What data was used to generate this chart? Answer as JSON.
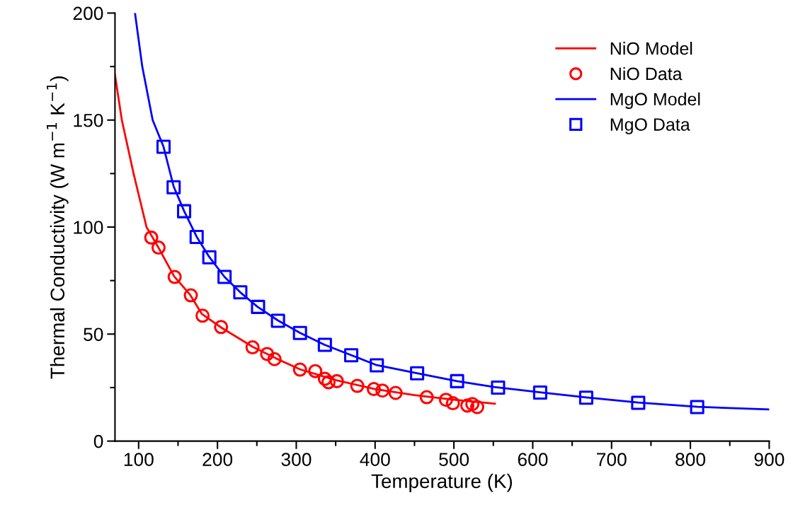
{
  "chart_data": {
    "type": "scatter",
    "xlabel": "Temperature (K)",
    "ylabel": "Thermal Conductivity (W m$^{−1}$ K$^{−1}$)",
    "xlim": [
      70,
      900
    ],
    "ylim": [
      0,
      200
    ],
    "xticks": [
      100,
      {
        "value": 150,
        "label": null
      },
      200,
      {
        "value": 250,
        "label": null
      },
      300,
      {
        "value": 350,
        "label": null
      },
      400,
      {
        "value": 450,
        "label": null
      },
      500,
      {
        "value": 550,
        "label": null
      },
      600,
      {
        "value": 650,
        "label": null
      },
      700,
      {
        "value": 750,
        "label": null
      },
      800,
      {
        "value": 850,
        "label": null
      },
      900
    ],
    "yticks": [
      0,
      {
        "value": 25,
        "label": null
      },
      50,
      {
        "value": 75,
        "label": null
      },
      100,
      {
        "value": 125,
        "label": null
      },
      150,
      {
        "value": 175,
        "label": null
      },
      200
    ],
    "grid": false,
    "legend": "top right",
    "series": [
      {
        "name": "NiO Model",
        "type": "line",
        "color": "#ff0000",
        "marker": "none",
        "line_style": "solid",
        "x": [
          70,
          78.7,
          93.6,
          110,
          125,
          145,
          165,
          180,
          205,
          245,
          275,
          305,
          350,
          400,
          450,
          500,
          552
        ],
        "values": [
          171,
          150,
          125,
          100,
          90.5,
          77,
          68.5,
          59.5,
          53,
          44,
          38.5,
          33.5,
          28.5,
          24.3,
          21.5,
          19.3,
          17.5
        ]
      },
      {
        "name": "NiO Data",
        "color": "#ff0000",
        "marker": "circle",
        "x": [
          116,
          125.3,
          145.7,
          166.2,
          181.1,
          204.6,
          244.5,
          263,
          272.4,
          304.7,
          324.1,
          336.3,
          340.9,
          351.5,
          377.4,
          398.4,
          409.3,
          426,
          465.5,
          489.9,
          498.7,
          517,
          523.4,
          529.5
        ],
        "values": [
          95.1,
          90.4,
          76.7,
          68.1,
          58.6,
          53.3,
          43.8,
          40.7,
          38.3,
          33.4,
          32.7,
          29.1,
          27.5,
          28,
          25.8,
          24.3,
          23.6,
          22.5,
          20.5,
          19.3,
          17.7,
          16.6,
          17.3,
          15.9
        ]
      },
      {
        "name": "MgO Model",
        "type": "line",
        "color": "#0000ff",
        "marker": "none",
        "line_style": "solid",
        "x": [
          95.4,
          104.6,
          117.8,
          131.6,
          144.4,
          157.7,
          173.6,
          189.7,
          209,
          229,
          251,
          277,
          305,
          336,
          370,
          402,
          453,
          504,
          551,
          609,
          668,
          734,
          809,
          900
        ],
        "values": [
          200,
          175,
          150,
          137.5,
          119,
          107.5,
          95.5,
          86,
          76.7,
          69.5,
          62.7,
          56.3,
          50.5,
          45,
          40.1,
          35.5,
          31.7,
          28,
          25.3,
          22.8,
          20.4,
          18,
          16,
          14.8
        ]
      },
      {
        "name": "MgO Data",
        "color": "#0000ff",
        "marker": "square",
        "x": [
          131.6,
          144.4,
          157.7,
          173.6,
          189.7,
          209,
          229,
          251.5,
          276.8,
          304.7,
          336.3,
          369.7,
          402.2,
          453.3,
          504,
          556,
          609.4,
          667.8,
          733.8,
          808.6
        ],
        "values": [
          137.5,
          118.6,
          107.4,
          95.4,
          85.9,
          76.7,
          69.5,
          62.7,
          56.2,
          50.5,
          45,
          40.1,
          35.4,
          31.7,
          28,
          25,
          22.7,
          20.3,
          17.9,
          15.9
        ]
      }
    ]
  }
}
